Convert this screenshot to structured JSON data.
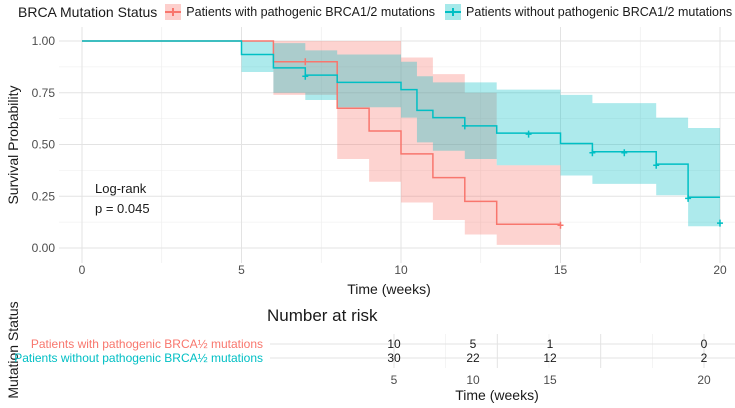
{
  "chart_data": {
    "type": "line",
    "subtype": "kaplan-meier survival curve with 95% confidence bands",
    "legend_title": "BRCA Mutation Status",
    "xlabel": "Time (weeks)",
    "ylabel": "Survival Probability",
    "xlim": [
      0,
      20
    ],
    "ylim": [
      0,
      1
    ],
    "x_ticks": [
      0,
      5,
      10,
      15,
      20
    ],
    "x_tick_labels": [
      "0",
      "5",
      "10",
      "15",
      "20"
    ],
    "y_ticks": [
      0,
      0.25,
      0.5,
      0.75,
      1
    ],
    "y_tick_labels": [
      "0.00",
      "0.25",
      "0.50",
      "0.75",
      "1.00"
    ],
    "grid": true,
    "legend_position": "top",
    "annotation": {
      "line1": "Log-rank",
      "line2": "p = 0.045"
    },
    "series": [
      {
        "name": "Patients with pathogenic BRCA1/2 mutations",
        "color": "#F8766D",
        "band_color": "#F8766D",
        "steps": [
          [
            0,
            1.0
          ],
          [
            6,
            0.9
          ],
          [
            8,
            0.675
          ],
          [
            9,
            0.565
          ],
          [
            10,
            0.455
          ],
          [
            11,
            0.34
          ],
          [
            12,
            0.225
          ],
          [
            13,
            0.115
          ],
          [
            15,
            0.115
          ]
        ],
        "band_lower": [
          [
            0,
            1.0
          ],
          [
            6,
            0.74
          ],
          [
            8,
            0.43
          ],
          [
            9,
            0.32
          ],
          [
            10,
            0.22
          ],
          [
            11,
            0.135
          ],
          [
            12,
            0.065
          ],
          [
            13,
            0.015
          ],
          [
            15,
            0.015
          ]
        ],
        "band_upper": [
          [
            0,
            1.0
          ],
          [
            6,
            1.0
          ],
          [
            8,
            1.0
          ],
          [
            9,
            1.0
          ],
          [
            10,
            0.92
          ],
          [
            11,
            0.84
          ],
          [
            12,
            0.75
          ],
          [
            13,
            0.4
          ],
          [
            15,
            0.4
          ]
        ],
        "censor_marks": [
          [
            7,
            0.9
          ],
          [
            15,
            0.11
          ]
        ]
      },
      {
        "name": "Patients without pathogenic BRCA1/2 mutations",
        "color": "#00BFC4",
        "band_color": "#00BFC4",
        "steps": [
          [
            0,
            1.0
          ],
          [
            5,
            0.935
          ],
          [
            6,
            0.87
          ],
          [
            7,
            0.835
          ],
          [
            8,
            0.8
          ],
          [
            10,
            0.765
          ],
          [
            10.5,
            0.665
          ],
          [
            11,
            0.63
          ],
          [
            12,
            0.59
          ],
          [
            13,
            0.555
          ],
          [
            15,
            0.505
          ],
          [
            16,
            0.465
          ],
          [
            18,
            0.405
          ],
          [
            19,
            0.245
          ],
          [
            20,
            0.245
          ]
        ],
        "band_lower": [
          [
            0,
            1.0
          ],
          [
            5,
            0.85
          ],
          [
            6,
            0.75
          ],
          [
            7,
            0.715
          ],
          [
            8,
            0.68
          ],
          [
            10,
            0.63
          ],
          [
            10.5,
            0.51
          ],
          [
            11,
            0.47
          ],
          [
            12,
            0.43
          ],
          [
            13,
            0.4
          ],
          [
            15,
            0.35
          ],
          [
            16,
            0.31
          ],
          [
            18,
            0.255
          ],
          [
            19,
            0.105
          ],
          [
            20,
            0.105
          ]
        ],
        "band_upper": [
          [
            0,
            1.0
          ],
          [
            5,
            1.0
          ],
          [
            6,
            0.99
          ],
          [
            7,
            0.955
          ],
          [
            8,
            0.935
          ],
          [
            10,
            0.9
          ],
          [
            10.5,
            0.83
          ],
          [
            11,
            0.8
          ],
          [
            12,
            0.8
          ],
          [
            13,
            0.765
          ],
          [
            15,
            0.74
          ],
          [
            16,
            0.7
          ],
          [
            18,
            0.63
          ],
          [
            19,
            0.58
          ],
          [
            20,
            0.58
          ]
        ],
        "censor_marks": [
          [
            7,
            0.83
          ],
          [
            12,
            0.59
          ],
          [
            14,
            0.55
          ],
          [
            16,
            0.46
          ],
          [
            17,
            0.46
          ],
          [
            18,
            0.4
          ],
          [
            19,
            0.24
          ],
          [
            20,
            0.12
          ]
        ]
      }
    ],
    "risk_table": {
      "title": "Number at risk",
      "ylabel": "Mutation Status",
      "xlabel": "Time (weeks)",
      "rows": [
        {
          "label": "Patients with pathogenic BRCA½ mutations",
          "color": "#F8766D",
          "values": [
            "10",
            "5",
            "1",
            "0"
          ]
        },
        {
          "label": "Patients without pathogenic BRCA½ mutations",
          "color": "#00BFC4",
          "values": [
            "30",
            "22",
            "12",
            "2"
          ]
        }
      ],
      "time_points": [
        5,
        10,
        15,
        20
      ],
      "tick_labels": [
        "5",
        "10",
        "15",
        "20"
      ]
    }
  }
}
